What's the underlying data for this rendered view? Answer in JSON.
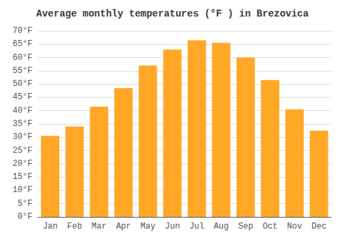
{
  "chart_data": {
    "type": "bar",
    "title": "Average monthly temperatures (°F ) in Brezovica",
    "categories": [
      "Jan",
      "Feb",
      "Mar",
      "Apr",
      "May",
      "Jun",
      "Jul",
      "Aug",
      "Sep",
      "Oct",
      "Nov",
      "Dec"
    ],
    "values": [
      30.5,
      34.0,
      41.5,
      48.5,
      57.0,
      63.0,
      66.5,
      65.5,
      60.0,
      51.5,
      40.5,
      32.5
    ],
    "color": "#FFA726",
    "ylim": [
      0,
      70
    ],
    "yticks": [
      {
        "value": 0,
        "label": "0°F"
      },
      {
        "value": 5,
        "label": "5°F"
      },
      {
        "value": 10,
        "label": "10°F"
      },
      {
        "value": 15,
        "label": "15°F"
      },
      {
        "value": 20,
        "label": "20°F"
      },
      {
        "value": 25,
        "label": "25°F"
      },
      {
        "value": 30,
        "label": "30°F"
      },
      {
        "value": 35,
        "label": "35°F"
      },
      {
        "value": 40,
        "label": "40°F"
      },
      {
        "value": 45,
        "label": "45°F"
      },
      {
        "value": 50,
        "label": "50°F"
      },
      {
        "value": 55,
        "label": "55°F"
      },
      {
        "value": 60,
        "label": "60°F"
      },
      {
        "value": 65,
        "label": "65°F"
      },
      {
        "value": 70,
        "label": "70°F"
      }
    ],
    "grid": true
  }
}
